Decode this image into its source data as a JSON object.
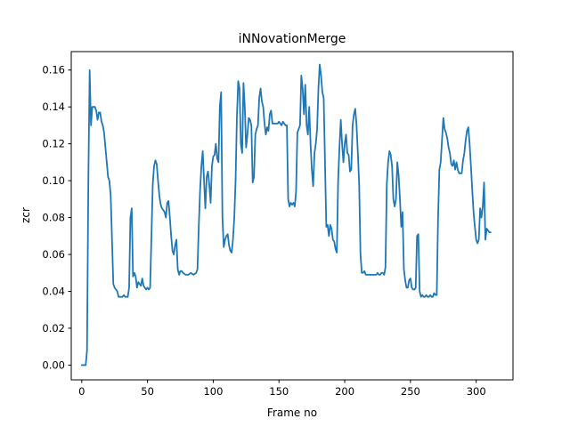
{
  "chart_data": {
    "type": "line",
    "title": "iNNovationMerge",
    "xlabel": "Frame no",
    "ylabel": "zcr",
    "xlim": [
      -8,
      328
    ],
    "ylim": [
      -0.008,
      0.17
    ],
    "xticks": [
      0,
      50,
      100,
      150,
      200,
      250,
      300
    ],
    "yticks": [
      0.0,
      0.02,
      0.04,
      0.06,
      0.08,
      0.1,
      0.12,
      0.14,
      0.16
    ],
    "grid": false,
    "series": [
      {
        "color": "#1f77b4",
        "points": [
          [
            0,
            0.0
          ],
          [
            3,
            0.0
          ],
          [
            4,
            0.008
          ],
          [
            5,
            0.1
          ],
          [
            6,
            0.16
          ],
          [
            7,
            0.13
          ],
          [
            8,
            0.14
          ],
          [
            10,
            0.14
          ],
          [
            11,
            0.138
          ],
          [
            12,
            0.133
          ],
          [
            13,
            0.137
          ],
          [
            14,
            0.137
          ],
          [
            15,
            0.132
          ],
          [
            16,
            0.13
          ],
          [
            17,
            0.126
          ],
          [
            18,
            0.118
          ],
          [
            19,
            0.11
          ],
          [
            20,
            0.102
          ],
          [
            21,
            0.1
          ],
          [
            22,
            0.092
          ],
          [
            23,
            0.068
          ],
          [
            24,
            0.044
          ],
          [
            25,
            0.042
          ],
          [
            27,
            0.04
          ],
          [
            28,
            0.037
          ],
          [
            31,
            0.037
          ],
          [
            32,
            0.038
          ],
          [
            33,
            0.037
          ],
          [
            34,
            0.037
          ],
          [
            35,
            0.037
          ],
          [
            36,
            0.042
          ],
          [
            37,
            0.08
          ],
          [
            38,
            0.085
          ],
          [
            39,
            0.048
          ],
          [
            40,
            0.05
          ],
          [
            41,
            0.048
          ],
          [
            42,
            0.042
          ],
          [
            43,
            0.045
          ],
          [
            44,
            0.044
          ],
          [
            45,
            0.043
          ],
          [
            46,
            0.047
          ],
          [
            47,
            0.043
          ],
          [
            48,
            0.042
          ],
          [
            49,
            0.041
          ],
          [
            50,
            0.042
          ],
          [
            51,
            0.041
          ],
          [
            52,
            0.042
          ],
          [
            53,
            0.07
          ],
          [
            54,
            0.098
          ],
          [
            55,
            0.108
          ],
          [
            56,
            0.111
          ],
          [
            57,
            0.109
          ],
          [
            58,
            0.1
          ],
          [
            59,
            0.092
          ],
          [
            60,
            0.087
          ],
          [
            61,
            0.085
          ],
          [
            62,
            0.084
          ],
          [
            63,
            0.083
          ],
          [
            64,
            0.08
          ],
          [
            65,
            0.088
          ],
          [
            66,
            0.089
          ],
          [
            67,
            0.08
          ],
          [
            68,
            0.07
          ],
          [
            69,
            0.062
          ],
          [
            70,
            0.06
          ],
          [
            71,
            0.065
          ],
          [
            72,
            0.068
          ],
          [
            73,
            0.052
          ],
          [
            74,
            0.049
          ],
          [
            75,
            0.051
          ],
          [
            76,
            0.051
          ],
          [
            77,
            0.05
          ],
          [
            79,
            0.049
          ],
          [
            81,
            0.049
          ],
          [
            83,
            0.05
          ],
          [
            85,
            0.049
          ],
          [
            87,
            0.05
          ],
          [
            88,
            0.052
          ],
          [
            89,
            0.075
          ],
          [
            90,
            0.095
          ],
          [
            91,
            0.108
          ],
          [
            92,
            0.116
          ],
          [
            93,
            0.1
          ],
          [
            94,
            0.085
          ],
          [
            95,
            0.102
          ],
          [
            96,
            0.105
          ],
          [
            97,
            0.098
          ],
          [
            98,
            0.088
          ],
          [
            99,
            0.108
          ],
          [
            100,
            0.113
          ],
          [
            101,
            0.114
          ],
          [
            102,
            0.12
          ],
          [
            103,
            0.112
          ],
          [
            104,
            0.11
          ],
          [
            105,
            0.14
          ],
          [
            106,
            0.148
          ],
          [
            107,
            0.08
          ],
          [
            108,
            0.064
          ],
          [
            109,
            0.068
          ],
          [
            110,
            0.07
          ],
          [
            111,
            0.071
          ],
          [
            112,
            0.065
          ],
          [
            113,
            0.062
          ],
          [
            114,
            0.061
          ],
          [
            115,
            0.068
          ],
          [
            116,
            0.08
          ],
          [
            117,
            0.1
          ],
          [
            118,
            0.135
          ],
          [
            119,
            0.154
          ],
          [
            120,
            0.15
          ],
          [
            121,
            0.12
          ],
          [
            122,
            0.115
          ],
          [
            123,
            0.153
          ],
          [
            124,
            0.14
          ],
          [
            125,
            0.118
          ],
          [
            126,
            0.125
          ],
          [
            127,
            0.134
          ],
          [
            128,
            0.133
          ],
          [
            129,
            0.13
          ],
          [
            130,
            0.099
          ],
          [
            131,
            0.102
          ],
          [
            132,
            0.125
          ],
          [
            133,
            0.128
          ],
          [
            134,
            0.13
          ],
          [
            135,
            0.145
          ],
          [
            136,
            0.15
          ],
          [
            137,
            0.143
          ],
          [
            138,
            0.14
          ],
          [
            139,
            0.131
          ],
          [
            140,
            0.125
          ],
          [
            141,
            0.129
          ],
          [
            142,
            0.127
          ],
          [
            143,
            0.136
          ],
          [
            144,
            0.138
          ],
          [
            145,
            0.131
          ],
          [
            147,
            0.131
          ],
          [
            149,
            0.131
          ],
          [
            150,
            0.132
          ],
          [
            151,
            0.131
          ],
          [
            152,
            0.13
          ],
          [
            153,
            0.132
          ],
          [
            154,
            0.131
          ],
          [
            155,
            0.13
          ],
          [
            156,
            0.13
          ],
          [
            157,
            0.09
          ],
          [
            158,
            0.086
          ],
          [
            159,
            0.088
          ],
          [
            160,
            0.087
          ],
          [
            161,
            0.088
          ],
          [
            162,
            0.086
          ],
          [
            163,
            0.094
          ],
          [
            164,
            0.126
          ],
          [
            165,
            0.128
          ],
          [
            166,
            0.13
          ],
          [
            167,
            0.157
          ],
          [
            168,
            0.15
          ],
          [
            169,
            0.136
          ],
          [
            170,
            0.152
          ],
          [
            171,
            0.13
          ],
          [
            172,
            0.125
          ],
          [
            173,
            0.14
          ],
          [
            174,
            0.12
          ],
          [
            175,
            0.106
          ],
          [
            176,
            0.097
          ],
          [
            177,
            0.115
          ],
          [
            178,
            0.12
          ],
          [
            179,
            0.128
          ],
          [
            180,
            0.15
          ],
          [
            181,
            0.163
          ],
          [
            182,
            0.157
          ],
          [
            183,
            0.148
          ],
          [
            184,
            0.145
          ],
          [
            185,
            0.11
          ],
          [
            186,
            0.075
          ],
          [
            187,
            0.076
          ],
          [
            188,
            0.07
          ],
          [
            189,
            0.076
          ],
          [
            190,
            0.074
          ],
          [
            191,
            0.068
          ],
          [
            192,
            0.067
          ],
          [
            193,
            0.063
          ],
          [
            194,
            0.061
          ],
          [
            195,
            0.1
          ],
          [
            196,
            0.118
          ],
          [
            197,
            0.133
          ],
          [
            198,
            0.12
          ],
          [
            199,
            0.11
          ],
          [
            200,
            0.12
          ],
          [
            201,
            0.125
          ],
          [
            202,
            0.115
          ],
          [
            203,
            0.114
          ],
          [
            204,
            0.105
          ],
          [
            205,
            0.106
          ],
          [
            206,
            0.13
          ],
          [
            207,
            0.136
          ],
          [
            208,
            0.139
          ],
          [
            209,
            0.13
          ],
          [
            210,
            0.115
          ],
          [
            211,
            0.098
          ],
          [
            212,
            0.06
          ],
          [
            213,
            0.05
          ],
          [
            214,
            0.05
          ],
          [
            215,
            0.051
          ],
          [
            216,
            0.049
          ],
          [
            218,
            0.049
          ],
          [
            220,
            0.049
          ],
          [
            222,
            0.049
          ],
          [
            224,
            0.049
          ],
          [
            225,
            0.05
          ],
          [
            226,
            0.049
          ],
          [
            227,
            0.049
          ],
          [
            228,
            0.05
          ],
          [
            229,
            0.05
          ],
          [
            230,
            0.049
          ],
          [
            231,
            0.053
          ],
          [
            232,
            0.098
          ],
          [
            233,
            0.11
          ],
          [
            234,
            0.116
          ],
          [
            235,
            0.114
          ],
          [
            236,
            0.108
          ],
          [
            237,
            0.09
          ],
          [
            238,
            0.086
          ],
          [
            239,
            0.09
          ],
          [
            240,
            0.11
          ],
          [
            241,
            0.103
          ],
          [
            242,
            0.09
          ],
          [
            243,
            0.075
          ],
          [
            244,
            0.083
          ],
          [
            245,
            0.052
          ],
          [
            246,
            0.046
          ],
          [
            247,
            0.042
          ],
          [
            248,
            0.042
          ],
          [
            249,
            0.046
          ],
          [
            250,
            0.047
          ],
          [
            251,
            0.042
          ],
          [
            252,
            0.041
          ],
          [
            253,
            0.041
          ],
          [
            254,
            0.042
          ],
          [
            255,
            0.07
          ],
          [
            256,
            0.071
          ],
          [
            257,
            0.04
          ],
          [
            258,
            0.037
          ],
          [
            259,
            0.038
          ],
          [
            260,
            0.037
          ],
          [
            261,
            0.037
          ],
          [
            262,
            0.038
          ],
          [
            263,
            0.037
          ],
          [
            264,
            0.037
          ],
          [
            265,
            0.038
          ],
          [
            266,
            0.037
          ],
          [
            267,
            0.037
          ],
          [
            268,
            0.039
          ],
          [
            269,
            0.038
          ],
          [
            270,
            0.038
          ],
          [
            271,
            0.08
          ],
          [
            272,
            0.106
          ],
          [
            273,
            0.11
          ],
          [
            274,
            0.122
          ],
          [
            275,
            0.134
          ],
          [
            276,
            0.128
          ],
          [
            277,
            0.126
          ],
          [
            278,
            0.123
          ],
          [
            279,
            0.118
          ],
          [
            280,
            0.115
          ],
          [
            281,
            0.109
          ],
          [
            282,
            0.108
          ],
          [
            283,
            0.111
          ],
          [
            284,
            0.106
          ],
          [
            285,
            0.11
          ],
          [
            286,
            0.106
          ],
          [
            287,
            0.104
          ],
          [
            288,
            0.104
          ],
          [
            289,
            0.104
          ],
          [
            290,
            0.111
          ],
          [
            291,
            0.115
          ],
          [
            292,
            0.122
          ],
          [
            293,
            0.127
          ],
          [
            294,
            0.129
          ],
          [
            295,
            0.12
          ],
          [
            296,
            0.108
          ],
          [
            297,
            0.095
          ],
          [
            298,
            0.083
          ],
          [
            299,
            0.075
          ],
          [
            300,
            0.068
          ],
          [
            301,
            0.066
          ],
          [
            302,
            0.068
          ],
          [
            303,
            0.085
          ],
          [
            304,
            0.08
          ],
          [
            305,
            0.086
          ],
          [
            306,
            0.099
          ],
          [
            307,
            0.068
          ],
          [
            308,
            0.074
          ],
          [
            309,
            0.073
          ],
          [
            310,
            0.072
          ],
          [
            311,
            0.072
          ]
        ]
      }
    ]
  }
}
